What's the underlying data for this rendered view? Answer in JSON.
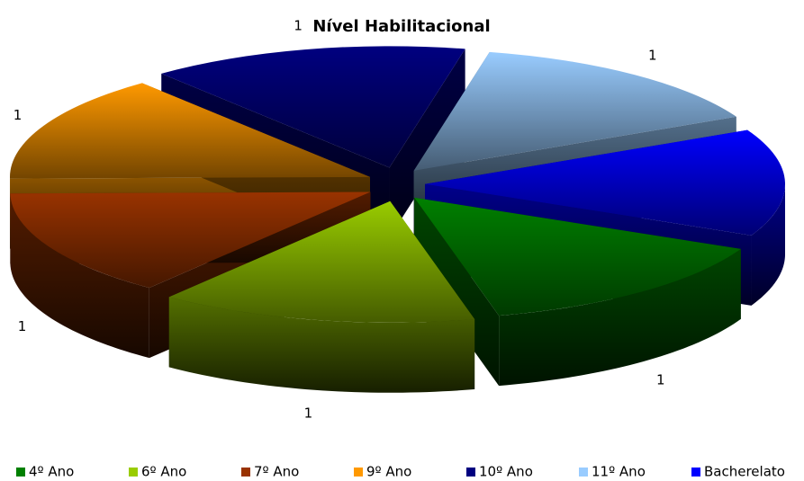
{
  "chart_data": {
    "type": "pie3d",
    "title": "Nível Habilitacional",
    "categories": [
      "4º Ano",
      "6º Ano",
      "7º Ano",
      "9º Ano",
      "10º Ano",
      "11º Ano",
      "Bacherelato"
    ],
    "values": [
      1,
      1,
      1,
      1,
      1,
      1,
      1
    ],
    "colors": [
      "#008000",
      "#99cc00",
      "#993300",
      "#ff9900",
      "#000080",
      "#99ccff",
      "#0000ff"
    ],
    "legend": "bottom"
  }
}
